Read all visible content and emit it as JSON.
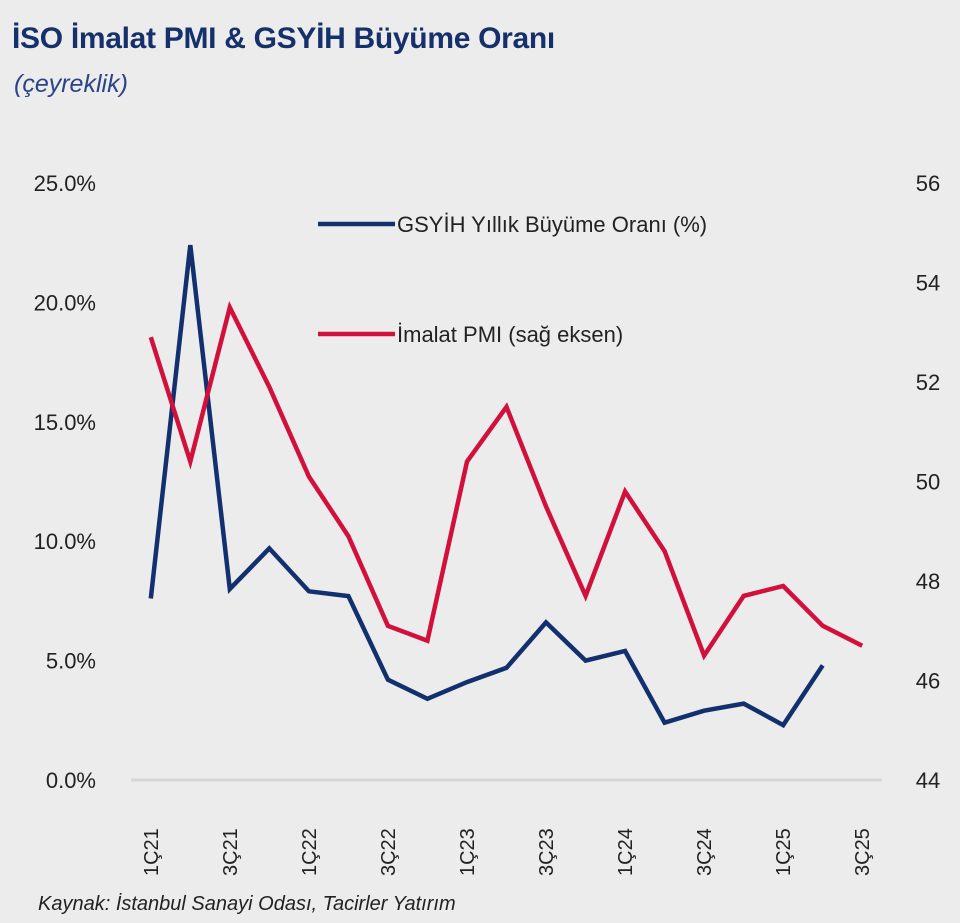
{
  "header": {
    "title": "İSO İmalat PMI & GSYİH Büyüme Oranı",
    "subtitle": "(çeyreklik)"
  },
  "footer": {
    "source": "Kaynak: İstanbul Sanayi Odası, Tacirler Yatırım"
  },
  "chart_data": {
    "type": "line",
    "title": "İSO İmalat PMI & GSYİH Büyüme Oranı",
    "subtitle": "(çeyreklik)",
    "x": [
      "1Ç21",
      "2Ç21",
      "3Ç21",
      "4Ç21",
      "1Ç22",
      "2Ç22",
      "3Ç22",
      "4Ç22",
      "1Ç23",
      "2Ç23",
      "3Ç23",
      "4Ç23",
      "1Ç24",
      "2Ç24",
      "3Ç24",
      "4Ç24",
      "1Ç25",
      "2Ç25",
      "3Ç25"
    ],
    "x_tick_labels": [
      "1Ç21",
      "3Ç21",
      "1Ç22",
      "3Ç22",
      "1Ç23",
      "3Ç23",
      "1Ç24",
      "3Ç24",
      "1Ç25",
      "3Ç25"
    ],
    "y_left": {
      "ylim": [
        0,
        25
      ],
      "ticks": [
        0,
        5,
        10,
        15,
        20,
        25
      ],
      "tick_labels": [
        "0.0%",
        "5.0%",
        "10.0%",
        "15.0%",
        "20.0%",
        "25.0%"
      ]
    },
    "y_right": {
      "ylim": [
        44,
        56
      ],
      "ticks": [
        44,
        46,
        48,
        50,
        52,
        54,
        56
      ],
      "tick_labels": [
        "44",
        "46",
        "48",
        "50",
        "52",
        "54",
        "56"
      ]
    },
    "grid": false,
    "legend_position": "top-right",
    "series": [
      {
        "name": "GSYİH Yıllık Büyüme Oranı (%)",
        "axis": "left",
        "color": "#13306e",
        "values": [
          7.6,
          22.4,
          8.0,
          9.7,
          7.9,
          7.7,
          4.2,
          3.4,
          4.1,
          4.7,
          6.6,
          5.0,
          5.4,
          2.4,
          2.9,
          3.2,
          2.3,
          4.8,
          null
        ]
      },
      {
        "name": "İmalat PMI (sağ eksen)",
        "axis": "right",
        "color": "#d2103c",
        "values": [
          52.9,
          50.4,
          53.5,
          51.9,
          50.1,
          48.9,
          47.1,
          46.8,
          50.4,
          51.5,
          49.5,
          47.7,
          49.8,
          48.6,
          46.5,
          47.7,
          47.9,
          47.1,
          46.7
        ]
      }
    ]
  }
}
